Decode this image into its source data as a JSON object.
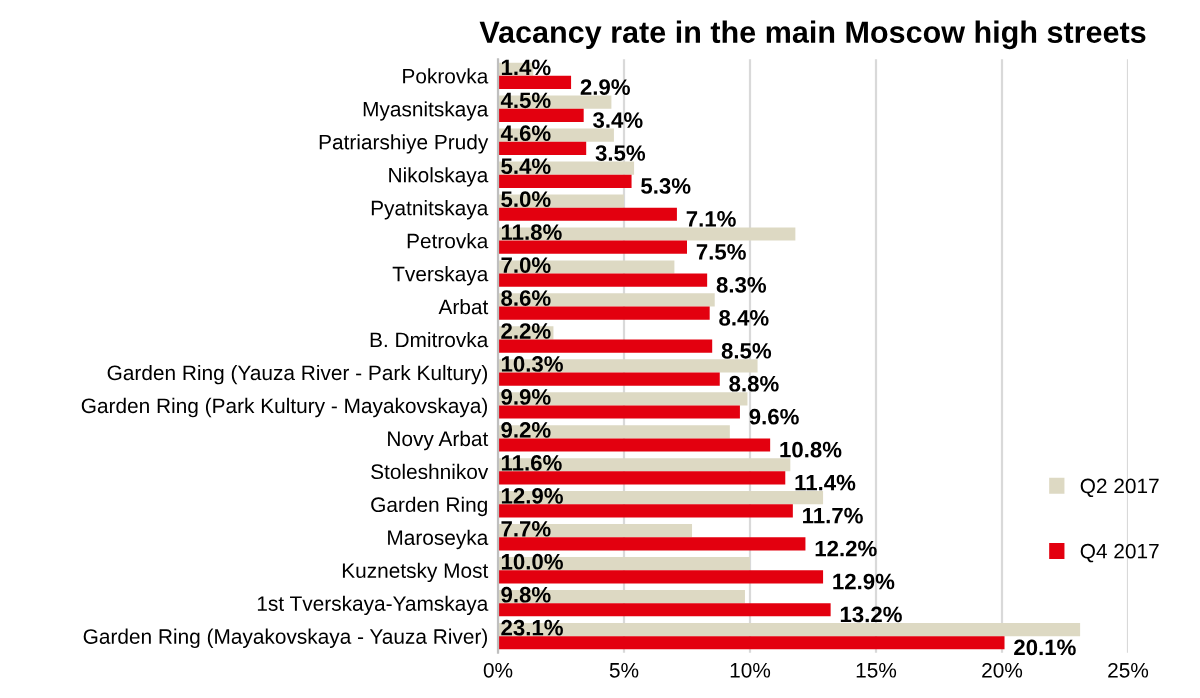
{
  "chart_data": {
    "type": "bar",
    "orientation": "horizontal",
    "title": "Vacancy rate in the main Moscow high streets",
    "categories": [
      "Pokrovka",
      "Myasnitskaya",
      "Patriarshiye Prudy",
      "Nikolskaya",
      "Pyatnitskaya",
      "Petrovka",
      "Tverskaya",
      "Arbat",
      "B. Dmitrovka",
      "Garden Ring (Yauza River - Park Kultury)",
      "Garden Ring (Park Kultury - Mayakovskaya)",
      "Novy Arbat",
      "Stoleshnikov",
      "Garden Ring",
      "Maroseyka",
      "Kuznetsky Most",
      "1st Tverskaya-Yamskaya",
      "Garden Ring (Mayakovskaya - Yauza River)"
    ],
    "series": [
      {
        "name": "Q2 2017",
        "color": "#ddd9c3",
        "values": [
          1.4,
          4.5,
          4.6,
          5.4,
          5.0,
          11.8,
          7.0,
          8.6,
          2.2,
          10.3,
          9.9,
          9.2,
          11.6,
          12.9,
          7.7,
          10.0,
          9.8,
          23.1
        ],
        "value_labels": [
          "1.4%",
          "4.5%",
          "4.6%",
          "5.4%",
          "5.0%",
          "11.8%",
          "7.0%",
          "8.6%",
          "2.2%",
          "10.3%",
          "9.9%",
          "9.2%",
          "11.6%",
          "12.9%",
          "7.7%",
          "10.0%",
          "9.8%",
          "23.1%"
        ]
      },
      {
        "name": "Q4 2017",
        "color": "#e3000f",
        "values": [
          2.9,
          3.4,
          3.5,
          5.3,
          7.1,
          7.5,
          8.3,
          8.4,
          8.5,
          8.8,
          9.6,
          10.8,
          11.4,
          11.7,
          12.2,
          12.9,
          13.2,
          20.1
        ],
        "value_labels": [
          "2.9%",
          "3.4%",
          "3.5%",
          "5.3%",
          "7.1%",
          "7.5%",
          "8.3%",
          "8.4%",
          "8.5%",
          "8.8%",
          "9.6%",
          "10.8%",
          "11.4%",
          "11.7%",
          "12.2%",
          "12.9%",
          "13.2%",
          "20.1%"
        ]
      }
    ],
    "xlim": [
      0,
      25
    ],
    "xticks": [
      {
        "value": 0,
        "label": "0%"
      },
      {
        "value": 5,
        "label": "5%"
      },
      {
        "value": 10,
        "label": "10%"
      },
      {
        "value": 15,
        "label": "15%"
      },
      {
        "value": 20,
        "label": "20%"
      },
      {
        "value": 25,
        "label": "25%"
      }
    ],
    "grid": "x",
    "legend": "bottom right"
  }
}
